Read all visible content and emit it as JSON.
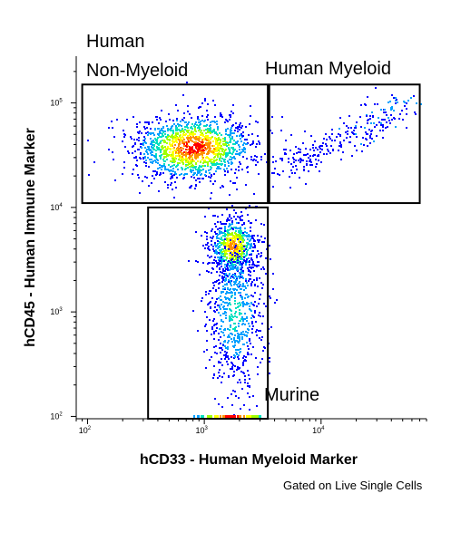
{
  "chart_data": {
    "type": "scatter",
    "plot_style": "flow cytometry density dot plot",
    "x_scale": "log",
    "y_scale": "log",
    "xlabel": "hCD33 - Human Myeloid Marker",
    "ylabel": "hCD45 - Human Immune Marker",
    "xlim": [
      80,
      80000
    ],
    "ylim": [
      95,
      280000
    ],
    "x_ticks": [
      {
        "base": "10",
        "exp": "2",
        "value": 100
      },
      {
        "base": "10",
        "exp": "3",
        "value": 1000
      },
      {
        "base": "10",
        "exp": "4",
        "value": 10000
      }
    ],
    "y_ticks": [
      {
        "base": "10",
        "exp": "2",
        "value": 100
      },
      {
        "base": "10",
        "exp": "3",
        "value": 1000
      },
      {
        "base": "10",
        "exp": "4",
        "value": 10000
      },
      {
        "base": "10",
        "exp": "5",
        "value": 100000
      }
    ],
    "density_colors": [
      "#0000ff",
      "#00a0ff",
      "#00e0c0",
      "#a0ff00",
      "#ffff00",
      "#ff9000",
      "#ff0000"
    ],
    "gates": [
      {
        "name": "Human Non-Myeloid",
        "label_lines": [
          "Human",
          "Non-Myeloid"
        ],
        "x_range": [
          90,
          3500
        ],
        "y_range": [
          11000,
          150000
        ]
      },
      {
        "name": "Human Myeloid",
        "label_lines": [
          "Human Myeloid"
        ],
        "x_range": [
          3600,
          70000
        ],
        "y_range": [
          11000,
          150000
        ]
      },
      {
        "name": "Murine",
        "label_lines": [
          "Murine"
        ],
        "x_range": [
          330,
          3500
        ],
        "y_range": [
          95,
          10000
        ]
      }
    ],
    "populations": [
      {
        "name": "non-myeloid cluster",
        "center_x": 800,
        "center_y": 38000,
        "n": 1400,
        "sx": 0.26,
        "sy": 0.16,
        "max_density": 1.0
      },
      {
        "name": "murine cluster",
        "center_x": 1750,
        "center_y": 4300,
        "n": 700,
        "sx": 0.1,
        "sy": 0.14,
        "max_density": 0.85
      },
      {
        "name": "murine tail",
        "center_x": 1800,
        "center_y": 1000,
        "n": 700,
        "sx": 0.13,
        "sy": 0.38,
        "max_density": 0.35
      },
      {
        "name": "myeloid diagonal",
        "from": [
          5000,
          25000
        ],
        "to": [
          55000,
          100000
        ],
        "n": 260,
        "max_density": 0.25
      }
    ],
    "annotation": "Gated on Live Single Cells"
  }
}
